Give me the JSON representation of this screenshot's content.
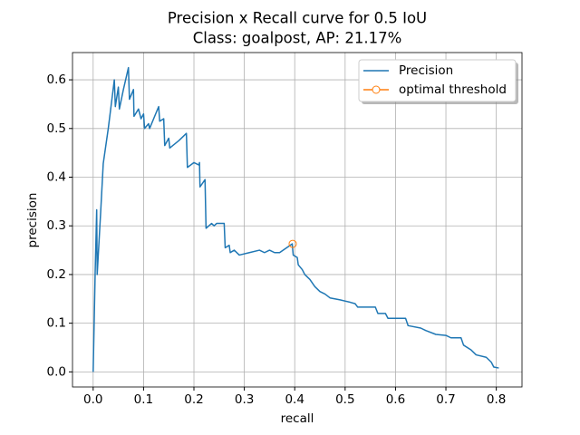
{
  "chart_data": {
    "type": "line",
    "title": "Precision x Recall curve for 0.5 IoU",
    "subtitle": "Class: goalpost, AP: 21.17%",
    "x_label": "recall",
    "y_label": "precision",
    "xlim": [
      -0.041,
      0.851
    ],
    "ylim": [
      -0.031,
      0.656
    ],
    "xticks": [
      {
        "value": 0,
        "label": "0.0"
      },
      0.1,
      0.2,
      0.3,
      0.4,
      0.5,
      0.6,
      0.7,
      0.8
    ],
    "yticks": [
      {
        "value": 0,
        "label": "0.0"
      },
      0.1,
      0.2,
      0.3,
      0.4,
      0.5,
      0.6
    ],
    "grid": true,
    "legend": "upper right",
    "series": [
      {
        "name": "Precision",
        "color": "#1f77b4",
        "x": [
          0.0,
          0.004,
          0.007,
          0.008,
          0.015,
          0.02,
          0.03,
          0.042,
          0.044,
          0.05,
          0.052,
          0.06,
          0.07,
          0.072,
          0.08,
          0.081,
          0.09,
          0.095,
          0.1,
          0.102,
          0.11,
          0.112,
          0.13,
          0.132,
          0.14,
          0.142,
          0.15,
          0.152,
          0.17,
          0.185,
          0.187,
          0.2,
          0.21,
          0.211,
          0.212,
          0.222,
          0.224,
          0.235,
          0.24,
          0.245,
          0.26,
          0.262,
          0.27,
          0.272,
          0.28,
          0.29,
          0.31,
          0.33,
          0.34,
          0.35,
          0.36,
          0.37,
          0.395,
          0.397,
          0.405,
          0.407,
          0.415,
          0.42,
          0.43,
          0.44,
          0.45,
          0.46,
          0.47,
          0.49,
          0.51,
          0.52,
          0.525,
          0.56,
          0.565,
          0.58,
          0.585,
          0.62,
          0.625,
          0.65,
          0.66,
          0.68,
          0.7,
          0.71,
          0.73,
          0.735,
          0.75,
          0.76,
          0.78,
          0.79,
          0.795,
          0.805
        ],
        "values": [
          0.0,
          0.205,
          0.333,
          0.2,
          0.33,
          0.428,
          0.5,
          0.6,
          0.545,
          0.585,
          0.54,
          0.58,
          0.625,
          0.56,
          0.58,
          0.525,
          0.54,
          0.52,
          0.53,
          0.5,
          0.51,
          0.5,
          0.545,
          0.515,
          0.52,
          0.465,
          0.48,
          0.46,
          0.475,
          0.49,
          0.42,
          0.43,
          0.425,
          0.43,
          0.38,
          0.395,
          0.295,
          0.305,
          0.3,
          0.305,
          0.305,
          0.255,
          0.26,
          0.245,
          0.25,
          0.24,
          0.245,
          0.25,
          0.245,
          0.25,
          0.245,
          0.245,
          0.263,
          0.24,
          0.235,
          0.22,
          0.21,
          0.2,
          0.19,
          0.175,
          0.165,
          0.16,
          0.152,
          0.148,
          0.143,
          0.14,
          0.133,
          0.133,
          0.12,
          0.12,
          0.11,
          0.11,
          0.095,
          0.09,
          0.085,
          0.077,
          0.075,
          0.07,
          0.07,
          0.055,
          0.045,
          0.035,
          0.03,
          0.02,
          0.01,
          0.008
        ]
      },
      {
        "name": "optimal threshold",
        "color": "#ff7f0e",
        "marker": "circle",
        "x": [
          0.396
        ],
        "values": [
          0.263
        ]
      }
    ]
  }
}
